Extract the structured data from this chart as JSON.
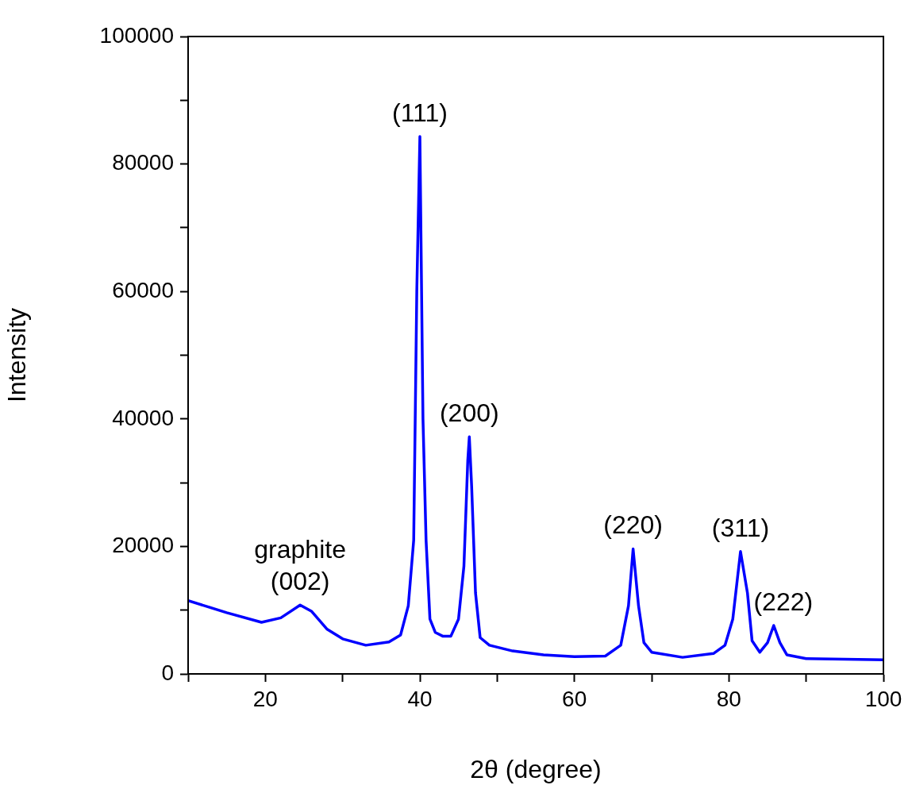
{
  "chart_data": {
    "type": "line",
    "xlabel": "2θ (degree)",
    "ylabel": "Intensity",
    "xlim": [
      10,
      100
    ],
    "ylim": [
      0,
      100000
    ],
    "xticks": [
      {
        "value": 10,
        "label": null
      },
      20,
      {
        "value": 30,
        "label": null
      },
      40,
      {
        "value": 50,
        "label": null
      },
      60,
      {
        "value": 70,
        "label": null
      },
      80,
      {
        "value": 90,
        "label": null
      },
      100
    ],
    "yticks": [
      0,
      {
        "value": 10000,
        "label": null
      },
      20000,
      {
        "value": 30000,
        "label": null
      },
      40000,
      {
        "value": 50000,
        "label": null
      },
      60000,
      {
        "value": 70000,
        "label": null
      },
      80000,
      {
        "value": 90000,
        "label": null
      },
      100000
    ],
    "grid": false,
    "legend": false,
    "marker": "none",
    "line_style": "solid",
    "series": [
      {
        "color": "#0000ff",
        "x": [
          10,
          15,
          19.5,
          22,
          24.5,
          26,
          28,
          30,
          33,
          36,
          37.5,
          38.5,
          39.2,
          39.6,
          40,
          40.4,
          40.8,
          41.3,
          42,
          43,
          44,
          45,
          45.7,
          46.2,
          46.4,
          46.7,
          47.2,
          47.8,
          49,
          52,
          56,
          60,
          64,
          66,
          67,
          67.6,
          68.3,
          69,
          70,
          74,
          78,
          79.5,
          80.5,
          81.5,
          82.4,
          83,
          84,
          85,
          85.8,
          86.6,
          87.5,
          90,
          100
        ],
        "values": [
          11500,
          9600,
          8100,
          8800,
          10800,
          9800,
          7000,
          5500,
          4500,
          5000,
          6100,
          10700,
          21000,
          60000,
          84300,
          40000,
          21000,
          8600,
          6500,
          5900,
          5900,
          8600,
          16900,
          33500,
          37200,
          29400,
          12700,
          5700,
          4500,
          3600,
          3000,
          2700,
          2800,
          4500,
          10700,
          19600,
          10700,
          4900,
          3400,
          2600,
          3200,
          4500,
          8600,
          19200,
          12700,
          5200,
          3400,
          4900,
          7600,
          4900,
          3000,
          2400,
          2200
        ]
      }
    ],
    "annotations": [
      {
        "text": "graphite\n(002)",
        "x": 24.5,
        "y": 10800
      },
      {
        "text": "(111)",
        "x": 40,
        "y": 84300
      },
      {
        "text": "(200)",
        "x": 46.4,
        "y": 37200
      },
      {
        "text": "(220)",
        "x": 67.6,
        "y": 19600
      },
      {
        "text": "(311)",
        "x": 81.5,
        "y": 19200
      },
      {
        "text": "(222)",
        "x": 85.8,
        "y": 7600
      }
    ]
  }
}
